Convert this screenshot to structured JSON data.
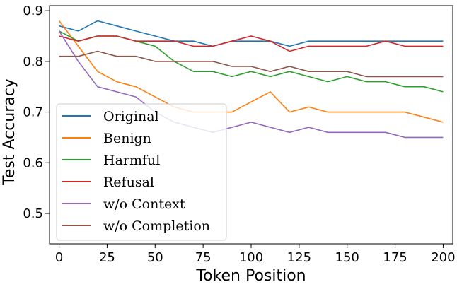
{
  "chart_data": {
    "type": "line",
    "title": "",
    "xlabel": "Token Position",
    "ylabel": "Test Accuracy",
    "xlim": [
      -5,
      205
    ],
    "ylim": [
      0.44,
      0.91
    ],
    "xticks": [
      0,
      25,
      50,
      75,
      100,
      125,
      150,
      175,
      200
    ],
    "yticks": [
      0.5,
      0.6,
      0.7,
      0.8,
      0.9
    ],
    "ytick_labels": [
      "0.5",
      "0.6",
      "0.7",
      "0.8",
      "0.9"
    ],
    "grid": false,
    "legend_position": "lower-left",
    "x": [
      0,
      10,
      20,
      30,
      40,
      50,
      60,
      70,
      80,
      90,
      100,
      110,
      120,
      130,
      140,
      150,
      160,
      170,
      180,
      190,
      200
    ],
    "series": [
      {
        "name": "Original",
        "color": "#1f77b4",
        "values": [
          0.87,
          0.86,
          0.88,
          0.87,
          0.86,
          0.85,
          0.84,
          0.84,
          0.83,
          0.84,
          0.84,
          0.84,
          0.83,
          0.84,
          0.84,
          0.84,
          0.84,
          0.84,
          0.84,
          0.84,
          0.84
        ]
      },
      {
        "name": "Benign",
        "color": "#ff7f0e",
        "values": [
          0.88,
          0.83,
          0.78,
          0.76,
          0.75,
          0.73,
          0.71,
          0.7,
          0.7,
          0.7,
          0.72,
          0.74,
          0.7,
          0.71,
          0.7,
          0.7,
          0.7,
          0.7,
          0.7,
          0.69,
          0.68
        ]
      },
      {
        "name": "Harmful",
        "color": "#2ca02c",
        "values": [
          0.86,
          0.84,
          0.85,
          0.85,
          0.84,
          0.83,
          0.8,
          0.78,
          0.78,
          0.77,
          0.78,
          0.77,
          0.78,
          0.77,
          0.76,
          0.77,
          0.76,
          0.76,
          0.75,
          0.75,
          0.74
        ]
      },
      {
        "name": "Refusal",
        "color": "#d62728",
        "values": [
          0.85,
          0.84,
          0.85,
          0.85,
          0.84,
          0.84,
          0.84,
          0.83,
          0.83,
          0.84,
          0.85,
          0.84,
          0.82,
          0.83,
          0.83,
          0.83,
          0.83,
          0.84,
          0.83,
          0.83,
          0.83
        ]
      },
      {
        "name": "w/o Context",
        "color": "#9467bd",
        "values": [
          0.86,
          0.8,
          0.75,
          0.74,
          0.73,
          0.7,
          0.68,
          0.67,
          0.66,
          0.67,
          0.68,
          0.67,
          0.66,
          0.67,
          0.66,
          0.66,
          0.66,
          0.66,
          0.65,
          0.65,
          0.65
        ]
      },
      {
        "name": "w/o Completion",
        "color": "#8c564b",
        "values": [
          0.81,
          0.81,
          0.82,
          0.81,
          0.81,
          0.8,
          0.8,
          0.8,
          0.8,
          0.79,
          0.79,
          0.78,
          0.79,
          0.78,
          0.78,
          0.78,
          0.77,
          0.77,
          0.77,
          0.77,
          0.77
        ]
      }
    ]
  }
}
